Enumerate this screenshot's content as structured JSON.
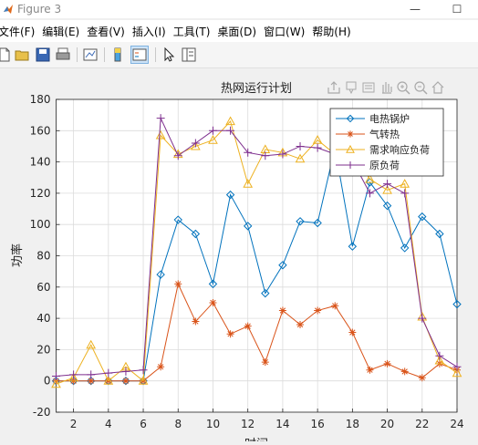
{
  "window": {
    "title": "Figure 3",
    "minimize": "—",
    "maximize": "☐"
  },
  "menu": [
    "文件(F)",
    "编辑(E)",
    "查看(V)",
    "插入(I)",
    "工具(T)",
    "桌面(D)",
    "窗口(W)",
    "帮助(H)"
  ],
  "toolbar": [
    "new-figure-icon",
    "open-icon",
    "save-icon",
    "print-icon",
    "link-plot-icon",
    "colorbar-icon",
    "legend-toggle-icon",
    "pointer-icon",
    "property-inspector-icon"
  ],
  "axes_toolbar": [
    "export-icon",
    "data-tip-icon",
    "brush-icon",
    "pan-icon",
    "zoom-in-icon",
    "zoom-out-icon",
    "home-icon"
  ],
  "chart_data": {
    "type": "line",
    "title": "热网运行计划",
    "xlabel": "时间",
    "ylabel": "功率",
    "xlim": [
      1,
      24
    ],
    "ylim": [
      -20,
      180
    ],
    "xticks": [
      2,
      4,
      6,
      8,
      10,
      12,
      14,
      16,
      18,
      20,
      22,
      24
    ],
    "yticks": [
      -20,
      0,
      20,
      40,
      60,
      80,
      100,
      120,
      140,
      160,
      180
    ],
    "grid": true,
    "legend_position": "top-right",
    "x": [
      1,
      2,
      3,
      4,
      5,
      6,
      7,
      8,
      9,
      10,
      11,
      12,
      13,
      14,
      15,
      16,
      17,
      18,
      19,
      20,
      21,
      22,
      23,
      24
    ],
    "series": [
      {
        "name": "电热锅炉",
        "color": "#0072bd",
        "marker": "diamond",
        "values": [
          0,
          0,
          0,
          0,
          0,
          0,
          68,
          103,
          94,
          62,
          119,
          99,
          56,
          74,
          102,
          101,
          149,
          86,
          127,
          112,
          85,
          105,
          94,
          49
        ]
      },
      {
        "name": "气转热",
        "color": "#d95319",
        "marker": "star",
        "values": [
          0,
          0,
          0,
          0,
          0,
          0,
          9,
          62,
          38,
          50,
          30,
          35,
          12,
          45,
          36,
          45,
          48,
          31,
          7,
          11,
          6,
          2,
          11,
          7
        ]
      },
      {
        "name": "需求响应负荷",
        "color": "#edb120",
        "marker": "triangle",
        "values": [
          -2,
          2,
          23,
          0,
          9,
          0,
          157,
          145,
          150,
          154,
          166,
          126,
          148,
          146,
          142,
          154,
          145,
          146,
          129,
          122,
          126,
          41,
          13,
          5
        ]
      },
      {
        "name": "原负荷",
        "color": "#7e2f8e",
        "marker": "plus",
        "values": [
          3,
          4,
          4,
          5,
          6,
          7,
          168,
          144,
          152,
          160,
          160,
          146,
          144,
          145,
          150,
          149,
          145,
          141,
          120,
          126,
          120,
          40,
          16,
          9
        ]
      }
    ]
  }
}
